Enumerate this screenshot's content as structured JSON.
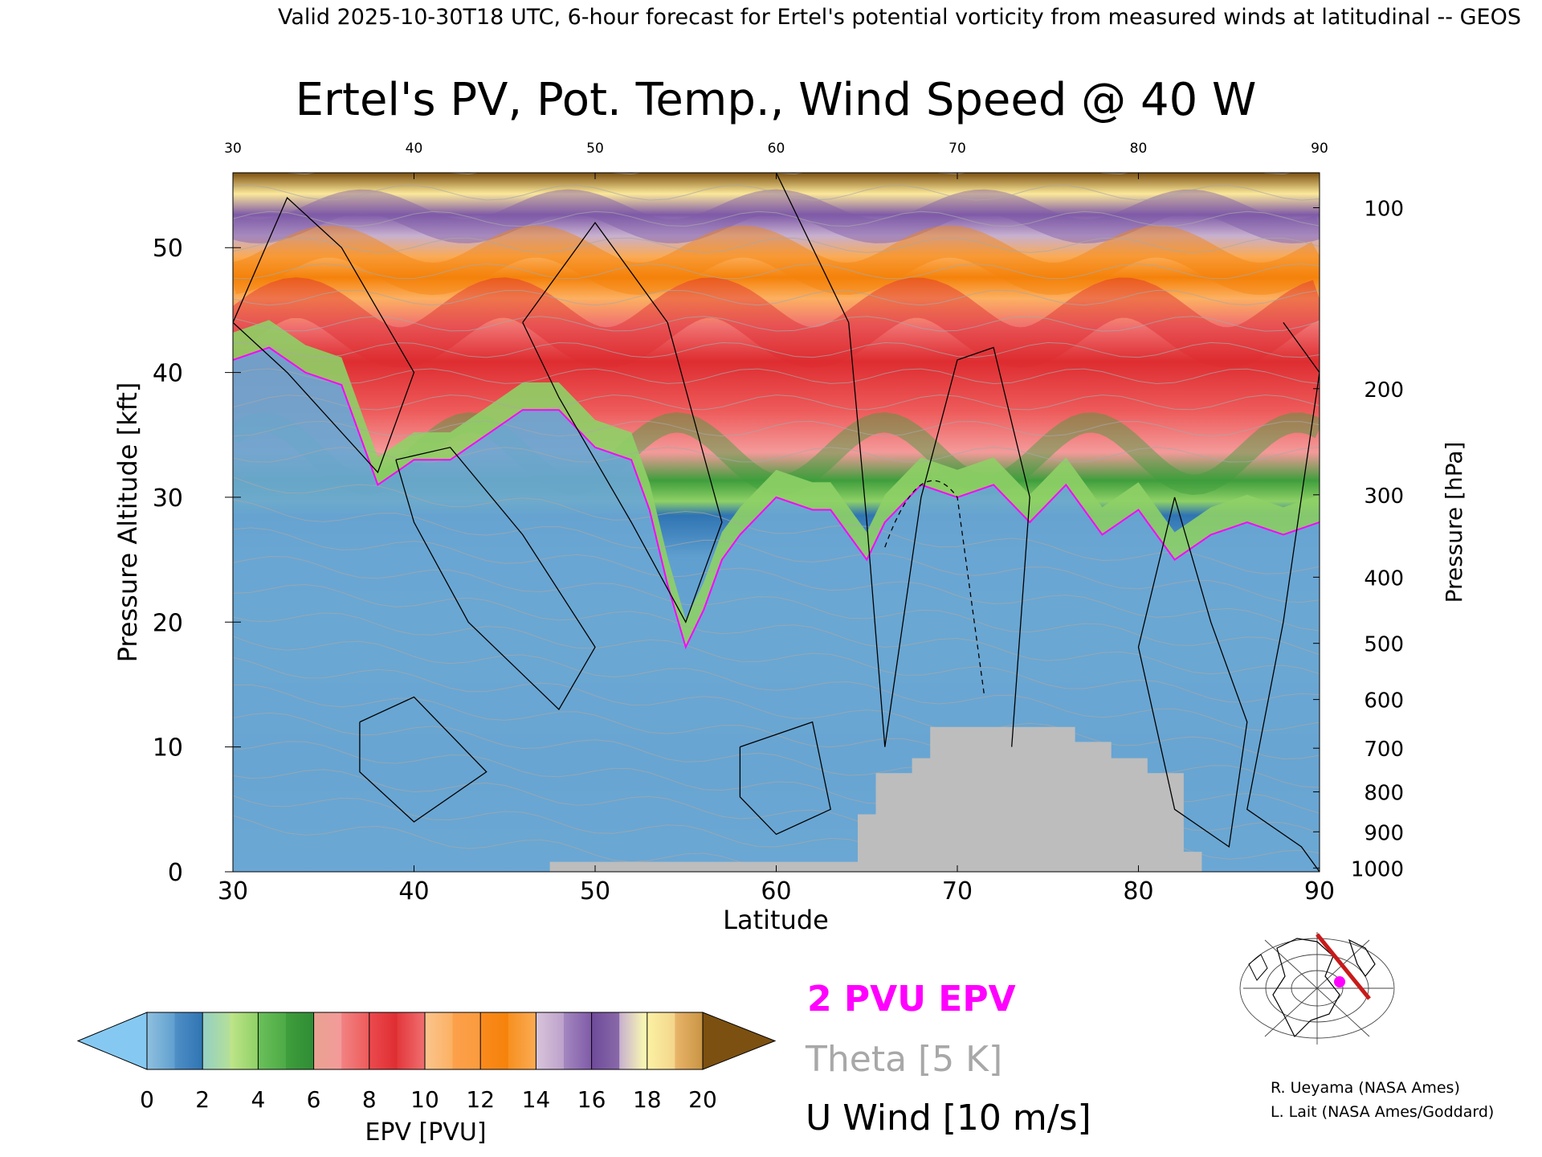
{
  "header": "Valid 2025-10-30T18 UTC, 6-hour forecast for Ertel's potential vorticity from measured winds at latitudinal -- GEOS",
  "chart_data": {
    "type": "heatmap",
    "title": "Ertel's PV, Pot. Temp., Wind Speed @ 40 W",
    "xlabel": "Latitude",
    "ylabel": "Pressure Altitude [kft]",
    "ylabel_right": "Pressure [hPa]",
    "xlim": [
      30,
      90
    ],
    "ylim": [
      0,
      56
    ],
    "x_ticks": [
      30,
      40,
      50,
      60,
      70,
      80,
      90
    ],
    "x_ticks_top": [
      30,
      40,
      50,
      60,
      70,
      80,
      90
    ],
    "y_ticks": [
      0,
      10,
      20,
      30,
      40,
      50
    ],
    "pressure_ticks": [
      {
        "label": "100",
        "kft": 53.2
      },
      {
        "label": "200",
        "kft": 38.7
      },
      {
        "label": "300",
        "kft": 30.2
      },
      {
        "label": "400",
        "kft": 23.6
      },
      {
        "label": "500",
        "kft": 18.3
      },
      {
        "label": "600",
        "kft": 13.8
      },
      {
        "label": "700",
        "kft": 9.9
      },
      {
        "label": "800",
        "kft": 6.4
      },
      {
        "label": "900",
        "kft": 3.2
      },
      {
        "label": "1000",
        "kft": 0.3
      }
    ],
    "colorbar": {
      "label": "EPV [PVU]",
      "ticks": [
        0,
        2,
        4,
        6,
        8,
        10,
        12,
        14,
        16,
        18,
        20
      ],
      "under_color": "#85c9f3",
      "over_color": "#7c5010",
      "levels": [
        {
          "from": 0,
          "to": 1,
          "colors": [
            "#8fc0df",
            "#5f9fcf"
          ]
        },
        {
          "from": 1,
          "to": 2,
          "colors": [
            "#4f8fc6",
            "#2f74b3"
          ]
        },
        {
          "from": 2,
          "to": 3,
          "colors": [
            "#94cfc3",
            "#b5e098"
          ]
        },
        {
          "from": 3,
          "to": 4,
          "colors": [
            "#bfe589",
            "#8ed066"
          ]
        },
        {
          "from": 4,
          "to": 5,
          "colors": [
            "#6bc05a",
            "#4caa45"
          ]
        },
        {
          "from": 5,
          "to": 6,
          "colors": [
            "#3f9e3c",
            "#2f8c34"
          ]
        },
        {
          "from": 6,
          "to": 7,
          "colors": [
            "#e8a291",
            "#f49a9a"
          ]
        },
        {
          "from": 7,
          "to": 8,
          "colors": [
            "#f28282",
            "#ee5a5a"
          ]
        },
        {
          "from": 8,
          "to": 9,
          "colors": [
            "#ec4a4e",
            "#de2d31"
          ]
        },
        {
          "from": 9,
          "to": 10,
          "colors": [
            "#e2383c",
            "#f07070"
          ]
        },
        {
          "from": 10,
          "to": 11,
          "colors": [
            "#fac58d",
            "#fcb062"
          ]
        },
        {
          "from": 11,
          "to": 12,
          "colors": [
            "#fda04a",
            "#fa9b3e"
          ]
        },
        {
          "from": 12,
          "to": 13,
          "colors": [
            "#f98a1d",
            "#f5820a"
          ]
        },
        {
          "from": 13,
          "to": 14,
          "colors": [
            "#f7901f",
            "#fbab55"
          ]
        },
        {
          "from": 14,
          "to": 15,
          "colors": [
            "#d8c4da",
            "#bca1cb"
          ]
        },
        {
          "from": 15,
          "to": 16,
          "colors": [
            "#a487bf",
            "#7f5aa8"
          ]
        },
        {
          "from": 16,
          "to": 17,
          "colors": [
            "#6e4a9a",
            "#8a6aa9"
          ]
        },
        {
          "from": 17,
          "to": 18,
          "colors": [
            "#c7b0cf",
            "#ffffb0"
          ]
        },
        {
          "from": 18,
          "to": 19,
          "colors": [
            "#fbf1a4",
            "#f3d58a"
          ]
        },
        {
          "from": 19,
          "to": 20,
          "colors": [
            "#e9b569",
            "#c89343"
          ]
        }
      ]
    },
    "layers": {
      "labels": [
        "2 PVU EPV",
        "Theta [5 K]",
        "U Wind [10 m/s]"
      ],
      "colors": [
        "#ff00ff",
        "#a8a8a8",
        "#000000"
      ]
    },
    "tropopause_2pvu_kft": [
      {
        "lat": 30,
        "kft": 41
      },
      {
        "lat": 32,
        "kft": 42
      },
      {
        "lat": 34,
        "kft": 40
      },
      {
        "lat": 36,
        "kft": 39
      },
      {
        "lat": 38,
        "kft": 31
      },
      {
        "lat": 40,
        "kft": 33
      },
      {
        "lat": 42,
        "kft": 33
      },
      {
        "lat": 44,
        "kft": 35
      },
      {
        "lat": 46,
        "kft": 37
      },
      {
        "lat": 48,
        "kft": 37
      },
      {
        "lat": 50,
        "kft": 34
      },
      {
        "lat": 52,
        "kft": 33
      },
      {
        "lat": 53,
        "kft": 29
      },
      {
        "lat": 54,
        "kft": 23
      },
      {
        "lat": 55,
        "kft": 18
      },
      {
        "lat": 56,
        "kft": 21
      },
      {
        "lat": 57,
        "kft": 25
      },
      {
        "lat": 58,
        "kft": 27
      },
      {
        "lat": 60,
        "kft": 30
      },
      {
        "lat": 62,
        "kft": 29
      },
      {
        "lat": 63,
        "kft": 29
      },
      {
        "lat": 64,
        "kft": 27
      },
      {
        "lat": 65,
        "kft": 25
      },
      {
        "lat": 66,
        "kft": 28
      },
      {
        "lat": 68,
        "kft": 31
      },
      {
        "lat": 70,
        "kft": 30
      },
      {
        "lat": 72,
        "kft": 31
      },
      {
        "lat": 74,
        "kft": 28
      },
      {
        "lat": 76,
        "kft": 31
      },
      {
        "lat": 78,
        "kft": 27
      },
      {
        "lat": 80,
        "kft": 29
      },
      {
        "lat": 82,
        "kft": 25
      },
      {
        "lat": 84,
        "kft": 27
      },
      {
        "lat": 86,
        "kft": 28
      },
      {
        "lat": 88,
        "kft": 27
      },
      {
        "lat": 90,
        "kft": 28
      }
    ],
    "topography_kft": [
      {
        "lat": 47.5,
        "kft": 0.8
      },
      {
        "lat": 64.5,
        "kft": 0.8
      },
      {
        "lat": 64.5,
        "kft": 4.6
      },
      {
        "lat": 65.5,
        "kft": 4.6
      },
      {
        "lat": 65.5,
        "kft": 7.9
      },
      {
        "lat": 67.5,
        "kft": 7.9
      },
      {
        "lat": 67.5,
        "kft": 9.1
      },
      {
        "lat": 68.5,
        "kft": 9.1
      },
      {
        "lat": 68.5,
        "kft": 11.6
      },
      {
        "lat": 76.5,
        "kft": 11.6
      },
      {
        "lat": 76.5,
        "kft": 10.4
      },
      {
        "lat": 78.5,
        "kft": 10.4
      },
      {
        "lat": 78.5,
        "kft": 9.1
      },
      {
        "lat": 80.5,
        "kft": 9.1
      },
      {
        "lat": 80.5,
        "kft": 7.9
      },
      {
        "lat": 82.5,
        "kft": 7.9
      },
      {
        "lat": 82.5,
        "kft": 1.6
      },
      {
        "lat": 83.5,
        "kft": 1.6
      },
      {
        "lat": 83.5,
        "kft": 0
      }
    ]
  },
  "credits": [
    "R. Ueyama (NASA Ames)",
    "L. Lait (NASA Ames/Goddard)"
  ]
}
